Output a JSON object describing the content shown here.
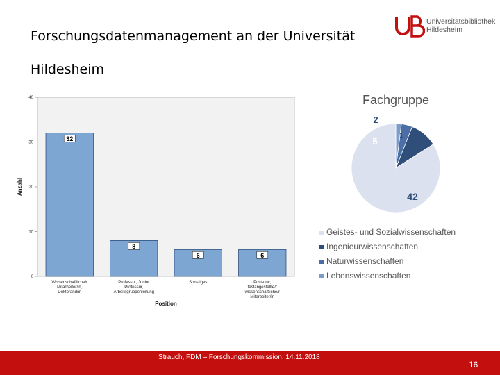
{
  "slide": {
    "title": "Forschungsdatenmanagement an der Universität Hildesheim",
    "logo": {
      "mark": "UB",
      "line1": "Universitätsbibliothek",
      "line2": "Hildesheim"
    },
    "footer": "Strauch, FDM – Forschungskommission, 14.11.2018",
    "page_number": "16"
  },
  "colors": {
    "accent": "#c40f0f",
    "bar": "#7ea6d2",
    "bar_border": "#2f4f7a"
  },
  "chart_data": [
    {
      "type": "bar",
      "title": "",
      "xlabel": "Position",
      "ylabel": "Anzahl",
      "ylim": [
        0,
        40
      ],
      "yticks": [
        "0",
        "10",
        "20",
        "30",
        "40"
      ],
      "categories": [
        "Wissenschaftliche/r Mitarbeiter/in, Doktorand/in",
        "Professur, Junior Professur, Arbeitsgruppenleitung",
        "Sonstiges",
        "Post-doc, festangestellte/r wissenschaftliche/r Mitarbeiter/in"
      ],
      "values": [
        32,
        8,
        6,
        6
      ]
    },
    {
      "type": "pie",
      "title": "Fachgruppe",
      "categories": [
        "Geistes- und Sozialwissenschaften",
        "Ingenieurwissenschaften",
        "Naturwissenschaften",
        "Lebenswissenschaften"
      ],
      "values": [
        42,
        5,
        2,
        1
      ],
      "colors": [
        "#dbe1ef",
        "#2f4f7a",
        "#4a6ea5",
        "#7d9dc6"
      ],
      "legend_position": "bottom"
    }
  ]
}
